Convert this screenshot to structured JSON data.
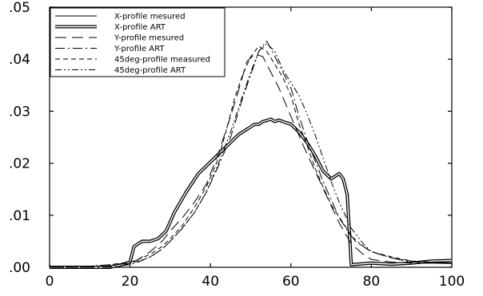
{
  "chart_data": {
    "type": "line",
    "title": "",
    "xlabel": "",
    "ylabel": "",
    "xlim": [
      0,
      100
    ],
    "ylim": [
      0,
      0.05
    ],
    "x_ticks": [
      0,
      20,
      40,
      60,
      80,
      100
    ],
    "x_tick_labels": [
      "0",
      "20",
      "40",
      "60",
      "80",
      "100"
    ],
    "y_ticks": [
      0,
      0.01,
      0.02,
      0.03,
      0.04,
      0.05
    ],
    "y_tick_labels": [
      ".00",
      ".01",
      ".02",
      ".03",
      ".04",
      ".05"
    ],
    "grid": false,
    "legend_position": "top-left",
    "series": [
      {
        "name": "X-profile mesured",
        "style": "solid",
        "x": [
          0,
          5,
          10,
          15,
          18,
          20,
          21,
          22,
          23,
          25,
          27,
          29,
          31,
          34,
          37,
          39,
          41,
          43,
          45,
          47,
          49,
          50,
          51,
          52,
          53,
          54,
          55,
          56,
          57,
          58,
          60,
          62,
          64,
          66,
          68,
          70,
          72,
          73,
          74,
          75,
          80,
          85,
          90,
          95,
          100
        ],
        "y": [
          0,
          0,
          0,
          0,
          0.0005,
          0.001,
          0.004,
          0.0045,
          0.005,
          0.005,
          0.0055,
          0.007,
          0.0105,
          0.0145,
          0.018,
          0.0195,
          0.021,
          0.0225,
          0.024,
          0.0255,
          0.0265,
          0.027,
          0.0275,
          0.0275,
          0.028,
          0.0282,
          0.0285,
          0.028,
          0.0283,
          0.028,
          0.0275,
          0.026,
          0.024,
          0.0215,
          0.0185,
          0.017,
          0.018,
          0.017,
          0.014,
          0.0005,
          0.0008,
          0.0006,
          0.0008,
          0.0008,
          0.0007
        ]
      },
      {
        "name": "X-profile ART",
        "style": "double",
        "x": [
          0,
          5,
          10,
          15,
          18,
          20,
          21,
          22,
          23,
          25,
          27,
          29,
          31,
          34,
          37,
          39,
          41,
          43,
          45,
          47,
          49,
          50,
          51,
          52,
          53,
          54,
          55,
          56,
          57,
          58,
          60,
          62,
          64,
          66,
          68,
          70,
          72,
          73,
          74,
          75,
          80,
          85,
          90,
          95,
          100
        ],
        "y": [
          0,
          0,
          0,
          0,
          0.0005,
          0.001,
          0.004,
          0.0045,
          0.005,
          0.005,
          0.0055,
          0.007,
          0.0105,
          0.0145,
          0.018,
          0.0195,
          0.021,
          0.0225,
          0.024,
          0.0255,
          0.0265,
          0.027,
          0.0275,
          0.0275,
          0.028,
          0.0282,
          0.0285,
          0.028,
          0.0283,
          0.028,
          0.0275,
          0.026,
          0.024,
          0.0215,
          0.0185,
          0.017,
          0.018,
          0.017,
          0.014,
          0.0005,
          0.0008,
          0.0006,
          0.0008,
          0.0012,
          0.0013
        ]
      },
      {
        "name": "Y-profile mesured",
        "style": "dashed",
        "x": [
          0,
          5,
          10,
          15,
          20,
          22,
          25,
          28,
          30,
          33,
          36,
          39,
          42,
          45,
          47,
          49,
          51,
          53,
          54,
          55,
          57,
          60,
          63,
          66,
          69,
          72,
          75,
          78,
          80,
          85,
          90,
          95,
          100
        ],
        "y": [
          0,
          0,
          0,
          0.0003,
          0.0008,
          0.0015,
          0.003,
          0.005,
          0.007,
          0.0095,
          0.0125,
          0.016,
          0.022,
          0.029,
          0.034,
          0.0395,
          0.041,
          0.0405,
          0.039,
          0.0375,
          0.0345,
          0.029,
          0.0235,
          0.0185,
          0.0135,
          0.0085,
          0.0045,
          0.0025,
          0.0015,
          0.001,
          0.0008,
          0.0008,
          0.0008
        ]
      },
      {
        "name": "Y-profile ART",
        "style": "dashdot",
        "x": [
          0,
          5,
          10,
          15,
          20,
          22,
          25,
          28,
          30,
          33,
          36,
          39,
          42,
          45,
          48,
          50,
          52,
          54,
          56,
          58,
          60,
          62,
          64,
          66,
          68,
          70,
          72,
          75,
          78,
          80,
          85,
          90,
          95,
          100
        ],
        "y": [
          0,
          0,
          0,
          0,
          0.0005,
          0.001,
          0.002,
          0.0035,
          0.005,
          0.0075,
          0.0105,
          0.0145,
          0.0195,
          0.025,
          0.0325,
          0.037,
          0.0415,
          0.0435,
          0.0405,
          0.0375,
          0.0345,
          0.029,
          0.0245,
          0.0205,
          0.0165,
          0.013,
          0.0095,
          0.006,
          0.004,
          0.003,
          0.0018,
          0.001,
          0.0008,
          0.0008
        ]
      },
      {
        "name": "45deg-profile measured",
        "style": "shortdash",
        "x": [
          0,
          5,
          10,
          15,
          20,
          22,
          25,
          28,
          30,
          33,
          36,
          39,
          42,
          44,
          46,
          48,
          50,
          52,
          54,
          56,
          58,
          60,
          62,
          64,
          66,
          68,
          70,
          73,
          76,
          80,
          85,
          90,
          95,
          100
        ],
        "y": [
          0,
          0,
          0,
          0.0005,
          0.001,
          0.0015,
          0.0025,
          0.004,
          0.0055,
          0.008,
          0.0115,
          0.0155,
          0.021,
          0.0265,
          0.0325,
          0.037,
          0.0405,
          0.0425,
          0.0415,
          0.039,
          0.0365,
          0.033,
          0.0275,
          0.0235,
          0.019,
          0.0155,
          0.012,
          0.0085,
          0.005,
          0.003,
          0.002,
          0.0012,
          0.001,
          0.0008
        ]
      },
      {
        "name": "45deg-profile ART",
        "style": "dashdotdot",
        "x": [
          0,
          5,
          10,
          15,
          20,
          22,
          25,
          28,
          30,
          33,
          36,
          39,
          42,
          45,
          48,
          50,
          52,
          54,
          56,
          58,
          60,
          62,
          64,
          66,
          68,
          70,
          72,
          75,
          78,
          80,
          85,
          90,
          95,
          100
        ],
        "y": [
          0,
          0.0002,
          0.0002,
          0.0005,
          0.0008,
          0.0012,
          0.002,
          0.0035,
          0.005,
          0.0075,
          0.0105,
          0.0145,
          0.02,
          0.026,
          0.033,
          0.0375,
          0.0415,
          0.043,
          0.0415,
          0.038,
          0.0355,
          0.033,
          0.0295,
          0.0255,
          0.021,
          0.0165,
          0.0125,
          0.0075,
          0.0045,
          0.003,
          0.0018,
          0.0012,
          0.001,
          0.0008
        ]
      }
    ]
  }
}
